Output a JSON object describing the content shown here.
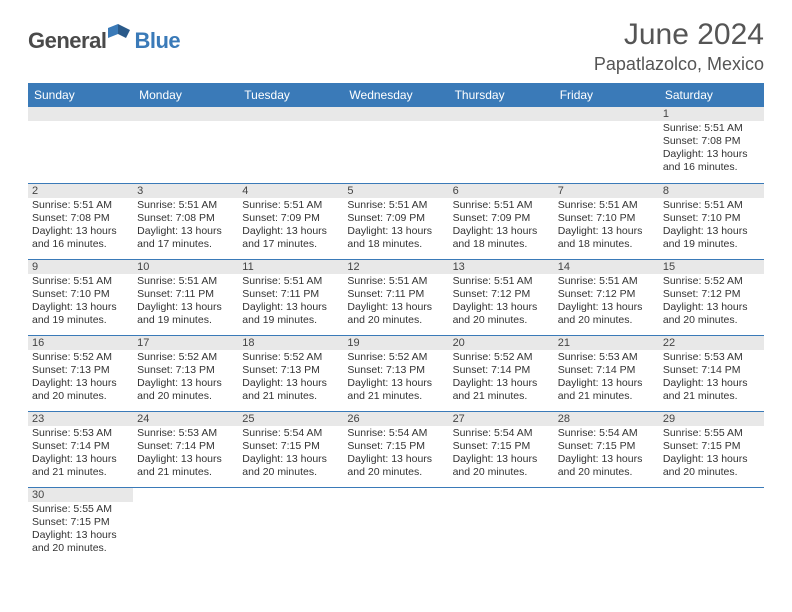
{
  "brand": {
    "general": "General",
    "blue": "Blue"
  },
  "title": "June 2024",
  "location": "Papatlazolco, Mexico",
  "colors": {
    "accent": "#3a7ab8",
    "header_text": "#ffffff",
    "daynum_bg": "#e8e8e8"
  },
  "weekdays": [
    "Sunday",
    "Monday",
    "Tuesday",
    "Wednesday",
    "Thursday",
    "Friday",
    "Saturday"
  ],
  "weeks": [
    [
      null,
      null,
      null,
      null,
      null,
      null,
      {
        "n": "1",
        "sr": "Sunrise: 5:51 AM",
        "ss": "Sunset: 7:08 PM",
        "dl": "Daylight: 13 hours and 16 minutes."
      }
    ],
    [
      {
        "n": "2",
        "sr": "Sunrise: 5:51 AM",
        "ss": "Sunset: 7:08 PM",
        "dl": "Daylight: 13 hours and 16 minutes."
      },
      {
        "n": "3",
        "sr": "Sunrise: 5:51 AM",
        "ss": "Sunset: 7:08 PM",
        "dl": "Daylight: 13 hours and 17 minutes."
      },
      {
        "n": "4",
        "sr": "Sunrise: 5:51 AM",
        "ss": "Sunset: 7:09 PM",
        "dl": "Daylight: 13 hours and 17 minutes."
      },
      {
        "n": "5",
        "sr": "Sunrise: 5:51 AM",
        "ss": "Sunset: 7:09 PM",
        "dl": "Daylight: 13 hours and 18 minutes."
      },
      {
        "n": "6",
        "sr": "Sunrise: 5:51 AM",
        "ss": "Sunset: 7:09 PM",
        "dl": "Daylight: 13 hours and 18 minutes."
      },
      {
        "n": "7",
        "sr": "Sunrise: 5:51 AM",
        "ss": "Sunset: 7:10 PM",
        "dl": "Daylight: 13 hours and 18 minutes."
      },
      {
        "n": "8",
        "sr": "Sunrise: 5:51 AM",
        "ss": "Sunset: 7:10 PM",
        "dl": "Daylight: 13 hours and 19 minutes."
      }
    ],
    [
      {
        "n": "9",
        "sr": "Sunrise: 5:51 AM",
        "ss": "Sunset: 7:10 PM",
        "dl": "Daylight: 13 hours and 19 minutes."
      },
      {
        "n": "10",
        "sr": "Sunrise: 5:51 AM",
        "ss": "Sunset: 7:11 PM",
        "dl": "Daylight: 13 hours and 19 minutes."
      },
      {
        "n": "11",
        "sr": "Sunrise: 5:51 AM",
        "ss": "Sunset: 7:11 PM",
        "dl": "Daylight: 13 hours and 19 minutes."
      },
      {
        "n": "12",
        "sr": "Sunrise: 5:51 AM",
        "ss": "Sunset: 7:11 PM",
        "dl": "Daylight: 13 hours and 20 minutes."
      },
      {
        "n": "13",
        "sr": "Sunrise: 5:51 AM",
        "ss": "Sunset: 7:12 PM",
        "dl": "Daylight: 13 hours and 20 minutes."
      },
      {
        "n": "14",
        "sr": "Sunrise: 5:51 AM",
        "ss": "Sunset: 7:12 PM",
        "dl": "Daylight: 13 hours and 20 minutes."
      },
      {
        "n": "15",
        "sr": "Sunrise: 5:52 AM",
        "ss": "Sunset: 7:12 PM",
        "dl": "Daylight: 13 hours and 20 minutes."
      }
    ],
    [
      {
        "n": "16",
        "sr": "Sunrise: 5:52 AM",
        "ss": "Sunset: 7:13 PM",
        "dl": "Daylight: 13 hours and 20 minutes."
      },
      {
        "n": "17",
        "sr": "Sunrise: 5:52 AM",
        "ss": "Sunset: 7:13 PM",
        "dl": "Daylight: 13 hours and 20 minutes."
      },
      {
        "n": "18",
        "sr": "Sunrise: 5:52 AM",
        "ss": "Sunset: 7:13 PM",
        "dl": "Daylight: 13 hours and 21 minutes."
      },
      {
        "n": "19",
        "sr": "Sunrise: 5:52 AM",
        "ss": "Sunset: 7:13 PM",
        "dl": "Daylight: 13 hours and 21 minutes."
      },
      {
        "n": "20",
        "sr": "Sunrise: 5:52 AM",
        "ss": "Sunset: 7:14 PM",
        "dl": "Daylight: 13 hours and 21 minutes."
      },
      {
        "n": "21",
        "sr": "Sunrise: 5:53 AM",
        "ss": "Sunset: 7:14 PM",
        "dl": "Daylight: 13 hours and 21 minutes."
      },
      {
        "n": "22",
        "sr": "Sunrise: 5:53 AM",
        "ss": "Sunset: 7:14 PM",
        "dl": "Daylight: 13 hours and 21 minutes."
      }
    ],
    [
      {
        "n": "23",
        "sr": "Sunrise: 5:53 AM",
        "ss": "Sunset: 7:14 PM",
        "dl": "Daylight: 13 hours and 21 minutes."
      },
      {
        "n": "24",
        "sr": "Sunrise: 5:53 AM",
        "ss": "Sunset: 7:14 PM",
        "dl": "Daylight: 13 hours and 21 minutes."
      },
      {
        "n": "25",
        "sr": "Sunrise: 5:54 AM",
        "ss": "Sunset: 7:15 PM",
        "dl": "Daylight: 13 hours and 20 minutes."
      },
      {
        "n": "26",
        "sr": "Sunrise: 5:54 AM",
        "ss": "Sunset: 7:15 PM",
        "dl": "Daylight: 13 hours and 20 minutes."
      },
      {
        "n": "27",
        "sr": "Sunrise: 5:54 AM",
        "ss": "Sunset: 7:15 PM",
        "dl": "Daylight: 13 hours and 20 minutes."
      },
      {
        "n": "28",
        "sr": "Sunrise: 5:54 AM",
        "ss": "Sunset: 7:15 PM",
        "dl": "Daylight: 13 hours and 20 minutes."
      },
      {
        "n": "29",
        "sr": "Sunrise: 5:55 AM",
        "ss": "Sunset: 7:15 PM",
        "dl": "Daylight: 13 hours and 20 minutes."
      }
    ],
    [
      {
        "n": "30",
        "sr": "Sunrise: 5:55 AM",
        "ss": "Sunset: 7:15 PM",
        "dl": "Daylight: 13 hours and 20 minutes."
      },
      null,
      null,
      null,
      null,
      null,
      null
    ]
  ]
}
